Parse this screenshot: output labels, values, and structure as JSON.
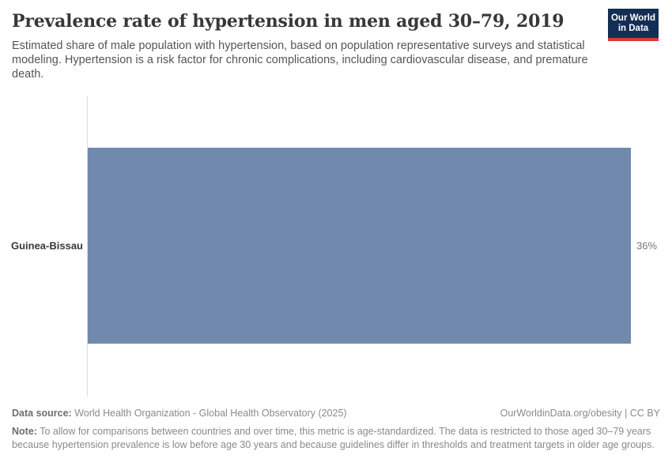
{
  "header": {
    "title": "Prevalence rate of hypertension in men aged 30–79, 2019",
    "subtitle": "Estimated share of male population with hypertension, based on population representative surveys and statistical modeling. Hypertension is a risk factor for chronic complications, including cardiovascular disease, and premature death.",
    "logo": {
      "line1": "Our World",
      "line2": "in Data",
      "bg_color": "#132e54",
      "stripe_color": "#d93a34"
    }
  },
  "chart_data": {
    "type": "bar",
    "orientation": "horizontal",
    "title": "Prevalence rate of hypertension in men aged 30–79, 2019",
    "categories": [
      "Guinea-Bissau"
    ],
    "values": [
      36
    ],
    "value_labels": [
      "36%"
    ],
    "unit": "%",
    "xlim": [
      0,
      36
    ],
    "grid": false,
    "legend": "none",
    "bar_color": "#7289ae",
    "axis_line_color": "#dcdcdc"
  },
  "footer": {
    "data_source_label": "Data source:",
    "data_source_text": " World Health Organization - Global Health Observatory (2025)",
    "attribution": "OurWorldinData.org/obesity | CC BY",
    "note_label": "Note:",
    "note_text": " To allow for comparisons between countries and over time, this metric is age-standardized. The data is restricted to those aged 30–79 years because hypertension prevalence is low before age 30 years and because guidelines differ in thresholds and treatment targets in older age groups."
  }
}
